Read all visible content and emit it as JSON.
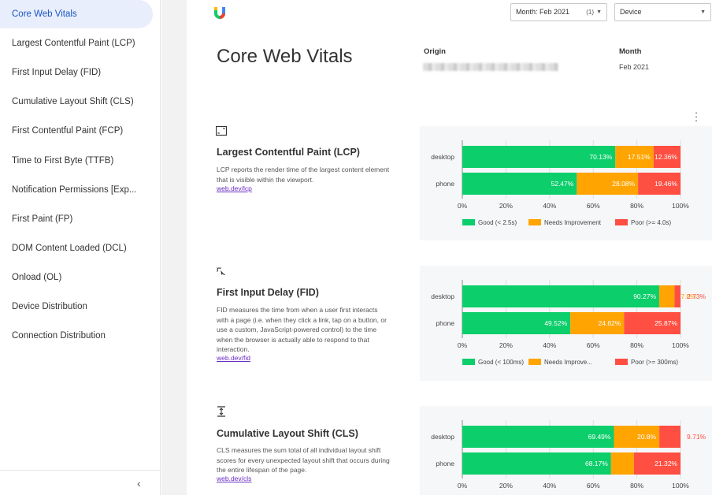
{
  "sidebar": {
    "items": [
      {
        "label": "Core Web Vitals",
        "active": true
      },
      {
        "label": "Largest Contentful Paint (LCP)",
        "active": false
      },
      {
        "label": "First Input Delay (FID)",
        "active": false
      },
      {
        "label": "Cumulative Layout Shift (CLS)",
        "active": false
      },
      {
        "label": "First Contentful Paint (FCP)",
        "active": false
      },
      {
        "label": "Time to First Byte (TTFB)",
        "active": false
      },
      {
        "label": "Notification Permissions [Exp...",
        "active": false
      },
      {
        "label": "First Paint (FP)",
        "active": false
      },
      {
        "label": "DOM Content Loaded (DCL)",
        "active": false
      },
      {
        "label": "Onload (OL)",
        "active": false
      },
      {
        "label": "Device Distribution",
        "active": false
      },
      {
        "label": "Connection Distribution",
        "active": false
      }
    ],
    "collapse_icon": "chevron-left-icon"
  },
  "header": {
    "month_filter": "Month: Feb 2021",
    "month_count": "(1)",
    "device_filter": "Device"
  },
  "page": {
    "title": "Core Web Vitals",
    "origin_label": "Origin",
    "month_label": "Month",
    "month_value": "Feb 2021"
  },
  "colors": {
    "good": "#0cce6b",
    "needs": "#ffa400",
    "poor": "#ff4e42"
  },
  "chart_data": [
    {
      "type": "bar",
      "stacked": true,
      "orientation": "horizontal",
      "title": "Largest Contentful Paint (LCP)",
      "description": "LCP reports the render time of the largest content element that is visible within the viewport.",
      "link": "web.dev/lcp",
      "icon": "lcp-icon",
      "categories": [
        "desktop",
        "phone"
      ],
      "series": [
        {
          "name": "Good (< 2.5s)",
          "values": [
            70.13,
            52.47
          ],
          "labels": [
            "70.13%",
            "52.47%"
          ]
        },
        {
          "name": "Needs Improvement",
          "values": [
            17.51,
            28.08
          ],
          "labels": [
            "17.51%",
            "28.08%"
          ]
        },
        {
          "name": "Poor (>= 4.0s)",
          "values": [
            12.36,
            19.46
          ],
          "labels": [
            "12.36%",
            "19.46%"
          ]
        }
      ],
      "ticks": [
        "0%",
        "20%",
        "40%",
        "60%",
        "80%",
        "100%"
      ],
      "xlim": [
        0,
        100
      ],
      "legend": "bottom"
    },
    {
      "type": "bar",
      "stacked": true,
      "orientation": "horizontal",
      "title": "First Input Delay (FID)",
      "description": "FID measures the time from when a user first interacts with a page (i.e. when they click a link, tap on a button, or use a custom, JavaScript-powered control) to the time when the browser is actually able to respond to that interaction.",
      "link": "web.dev/fid",
      "icon": "fid-icon",
      "categories": [
        "desktop",
        "phone"
      ],
      "series": [
        {
          "name": "Good (< 100ms)",
          "values": [
            90.27,
            49.52
          ],
          "labels": [
            "90.27%",
            "49.52%"
          ]
        },
        {
          "name": "Needs Improve...",
          "values": [
            7.0,
            24.62
          ],
          "labels": [
            "7.0%",
            "24.62%"
          ]
        },
        {
          "name": "Poor (>= 300ms)",
          "values": [
            2.73,
            25.87
          ],
          "labels": [
            "2.73%",
            "25.87%"
          ]
        }
      ],
      "ticks": [
        "0%",
        "20%",
        "40%",
        "60%",
        "80%",
        "100%"
      ],
      "xlim": [
        0,
        100
      ],
      "legend": "bottom"
    },
    {
      "type": "bar",
      "stacked": true,
      "orientation": "horizontal",
      "title": "Cumulative Layout Shift (CLS)",
      "description": "CLS measures the sum total of all individual layout shift scores for every unexpected layout shift that occurs during the entire lifespan of the page.",
      "link": "web.dev/cls",
      "icon": "cls-icon",
      "categories": [
        "desktop",
        "phone"
      ],
      "series": [
        {
          "name": "Good",
          "values": [
            69.49,
            68.17
          ],
          "labels": [
            "69.49%",
            "68.17%"
          ]
        },
        {
          "name": "Needs Improvement",
          "values": [
            20.8,
            10.51
          ],
          "labels": [
            "20.8%",
            "10.51%"
          ]
        },
        {
          "name": "Poor",
          "values": [
            9.71,
            21.32
          ],
          "labels": [
            "9.71%",
            "21.32%"
          ]
        }
      ],
      "ticks": [
        "0%",
        "20%",
        "40%",
        "60%",
        "80%",
        "100%"
      ],
      "xlim": [
        0,
        100
      ],
      "legend": "bottom"
    }
  ]
}
